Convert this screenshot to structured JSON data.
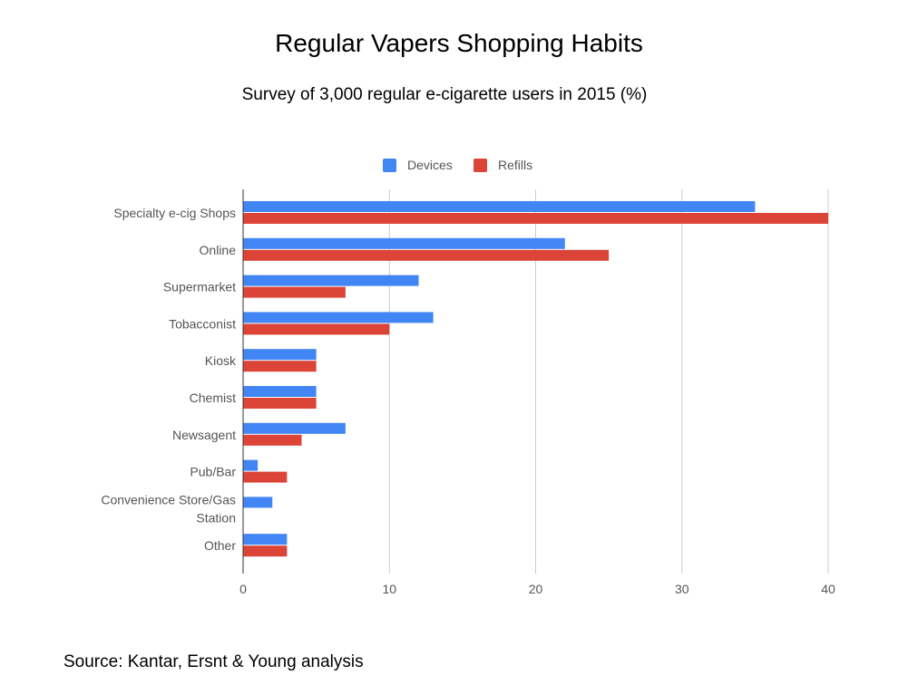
{
  "chart_data": {
    "type": "bar",
    "orientation": "horizontal",
    "title": "Regular Vapers Shopping Habits",
    "subtitle": "Survey of 3,000 regular e-cigarette users in 2015 (%)",
    "categories": [
      [
        "Specialty e-cig Shops"
      ],
      [
        "Online"
      ],
      [
        "Supermarket"
      ],
      [
        "Tobacconist"
      ],
      [
        "Kiosk"
      ],
      [
        "Chemist"
      ],
      [
        "Newsagent"
      ],
      [
        "Pub/Bar"
      ],
      [
        "Convenience Store/Gas",
        "Station"
      ],
      [
        "Other"
      ]
    ],
    "series": [
      {
        "name": "Devices",
        "color": "#4285f4",
        "values": [
          35,
          22,
          12,
          13,
          5,
          5,
          7,
          1,
          2,
          3
        ]
      },
      {
        "name": "Refills",
        "color": "#db4437",
        "values": [
          40,
          25,
          7,
          10,
          5,
          5,
          4,
          3,
          0,
          3
        ]
      }
    ],
    "xlim": [
      0,
      40
    ],
    "xticks": [
      0,
      10,
      20,
      30,
      40
    ],
    "grid": true,
    "legend_position": "top-center",
    "source": "Source: Kantar, Ersnt & Young analysis"
  }
}
